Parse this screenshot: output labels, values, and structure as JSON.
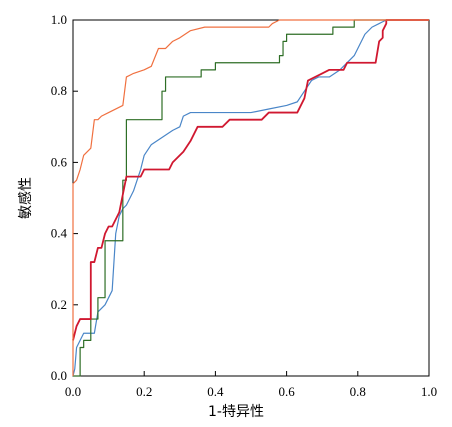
{
  "chart_data": {
    "type": "line",
    "title": "",
    "xlabel": "1-特异性",
    "ylabel": "敏感性",
    "xlim": [
      0,
      1
    ],
    "ylim": [
      0,
      1
    ],
    "x_ticks": [
      "0.0",
      "0.2",
      "0.4",
      "0.6",
      "0.8",
      "1.0"
    ],
    "y_ticks": [
      "0.0",
      "0.2",
      "0.4",
      "0.6",
      "0.8",
      "1.0"
    ],
    "grid": false,
    "legend": "none",
    "series": [
      {
        "color": "#4a86c8",
        "stroke_width": 1.2,
        "points": [
          [
            0,
            0
          ],
          [
            0.005,
            0.02
          ],
          [
            0.01,
            0.08
          ],
          [
            0.02,
            0.1
          ],
          [
            0.03,
            0.12
          ],
          [
            0.06,
            0.12
          ],
          [
            0.07,
            0.18
          ],
          [
            0.09,
            0.2
          ],
          [
            0.1,
            0.22
          ],
          [
            0.11,
            0.24
          ],
          [
            0.12,
            0.4
          ],
          [
            0.13,
            0.45
          ],
          [
            0.14,
            0.47
          ],
          [
            0.15,
            0.48
          ],
          [
            0.17,
            0.52
          ],
          [
            0.19,
            0.58
          ],
          [
            0.2,
            0.62
          ],
          [
            0.22,
            0.65
          ],
          [
            0.25,
            0.67
          ],
          [
            0.28,
            0.69
          ],
          [
            0.3,
            0.7
          ],
          [
            0.31,
            0.73
          ],
          [
            0.33,
            0.74
          ],
          [
            0.45,
            0.74
          ],
          [
            0.5,
            0.74
          ],
          [
            0.55,
            0.75
          ],
          [
            0.6,
            0.76
          ],
          [
            0.63,
            0.77
          ],
          [
            0.65,
            0.8
          ],
          [
            0.67,
            0.83
          ],
          [
            0.69,
            0.84
          ],
          [
            0.72,
            0.84
          ],
          [
            0.75,
            0.86
          ],
          [
            0.77,
            0.88
          ],
          [
            0.79,
            0.9
          ],
          [
            0.81,
            0.94
          ],
          [
            0.82,
            0.96
          ],
          [
            0.84,
            0.98
          ],
          [
            0.86,
            0.99
          ],
          [
            0.88,
            1.0
          ],
          [
            1.0,
            1.0
          ]
        ]
      },
      {
        "color": "#2e6e26",
        "stroke_width": 1.2,
        "points": [
          [
            0,
            0
          ],
          [
            0.02,
            0
          ],
          [
            0.02,
            0.08
          ],
          [
            0.03,
            0.08
          ],
          [
            0.03,
            0.1
          ],
          [
            0.05,
            0.1
          ],
          [
            0.05,
            0.16
          ],
          [
            0.07,
            0.16
          ],
          [
            0.07,
            0.22
          ],
          [
            0.09,
            0.22
          ],
          [
            0.09,
            0.38
          ],
          [
            0.14,
            0.38
          ],
          [
            0.14,
            0.55
          ],
          [
            0.15,
            0.55
          ],
          [
            0.15,
            0.72
          ],
          [
            0.25,
            0.72
          ],
          [
            0.25,
            0.8
          ],
          [
            0.26,
            0.8
          ],
          [
            0.26,
            0.84
          ],
          [
            0.36,
            0.84
          ],
          [
            0.36,
            0.86
          ],
          [
            0.4,
            0.86
          ],
          [
            0.4,
            0.88
          ],
          [
            0.58,
            0.88
          ],
          [
            0.58,
            0.9
          ],
          [
            0.59,
            0.9
          ],
          [
            0.59,
            0.94
          ],
          [
            0.6,
            0.94
          ],
          [
            0.6,
            0.96
          ],
          [
            0.73,
            0.96
          ],
          [
            0.73,
            0.98
          ],
          [
            0.79,
            0.98
          ],
          [
            0.79,
            1.0
          ],
          [
            1.0,
            1.0
          ]
        ]
      },
      {
        "color": "#d01830",
        "stroke_width": 1.8,
        "points": [
          [
            0,
            0.1
          ],
          [
            0.01,
            0.14
          ],
          [
            0.02,
            0.16
          ],
          [
            0.05,
            0.16
          ],
          [
            0.05,
            0.32
          ],
          [
            0.06,
            0.32
          ],
          [
            0.07,
            0.36
          ],
          [
            0.08,
            0.36
          ],
          [
            0.09,
            0.4
          ],
          [
            0.1,
            0.42
          ],
          [
            0.11,
            0.42
          ],
          [
            0.13,
            0.46
          ],
          [
            0.15,
            0.56
          ],
          [
            0.19,
            0.56
          ],
          [
            0.2,
            0.58
          ],
          [
            0.27,
            0.58
          ],
          [
            0.28,
            0.6
          ],
          [
            0.31,
            0.63
          ],
          [
            0.33,
            0.66
          ],
          [
            0.35,
            0.7
          ],
          [
            0.42,
            0.7
          ],
          [
            0.44,
            0.72
          ],
          [
            0.53,
            0.72
          ],
          [
            0.55,
            0.74
          ],
          [
            0.63,
            0.74
          ],
          [
            0.65,
            0.78
          ],
          [
            0.66,
            0.83
          ],
          [
            0.7,
            0.85
          ],
          [
            0.72,
            0.86
          ],
          [
            0.76,
            0.86
          ],
          [
            0.77,
            0.88
          ],
          [
            0.85,
            0.88
          ],
          [
            0.86,
            0.94
          ],
          [
            0.87,
            0.95
          ],
          [
            0.87,
            0.97
          ],
          [
            0.88,
            0.99
          ],
          [
            0.88,
            1.0
          ],
          [
            1.0,
            1.0
          ]
        ]
      },
      {
        "color": "#f07040",
        "stroke_width": 1.2,
        "points": [
          [
            0,
            0
          ],
          [
            0,
            0.54
          ],
          [
            0.01,
            0.55
          ],
          [
            0.02,
            0.58
          ],
          [
            0.03,
            0.62
          ],
          [
            0.05,
            0.64
          ],
          [
            0.06,
            0.72
          ],
          [
            0.07,
            0.72
          ],
          [
            0.08,
            0.73
          ],
          [
            0.1,
            0.74
          ],
          [
            0.14,
            0.76
          ],
          [
            0.15,
            0.84
          ],
          [
            0.17,
            0.85
          ],
          [
            0.2,
            0.86
          ],
          [
            0.22,
            0.87
          ],
          [
            0.24,
            0.92
          ],
          [
            0.26,
            0.92
          ],
          [
            0.28,
            0.94
          ],
          [
            0.3,
            0.95
          ],
          [
            0.33,
            0.97
          ],
          [
            0.37,
            0.98
          ],
          [
            0.55,
            0.98
          ],
          [
            0.56,
            0.99
          ],
          [
            0.58,
            1.0
          ],
          [
            1.0,
            1.0
          ]
        ]
      }
    ]
  }
}
